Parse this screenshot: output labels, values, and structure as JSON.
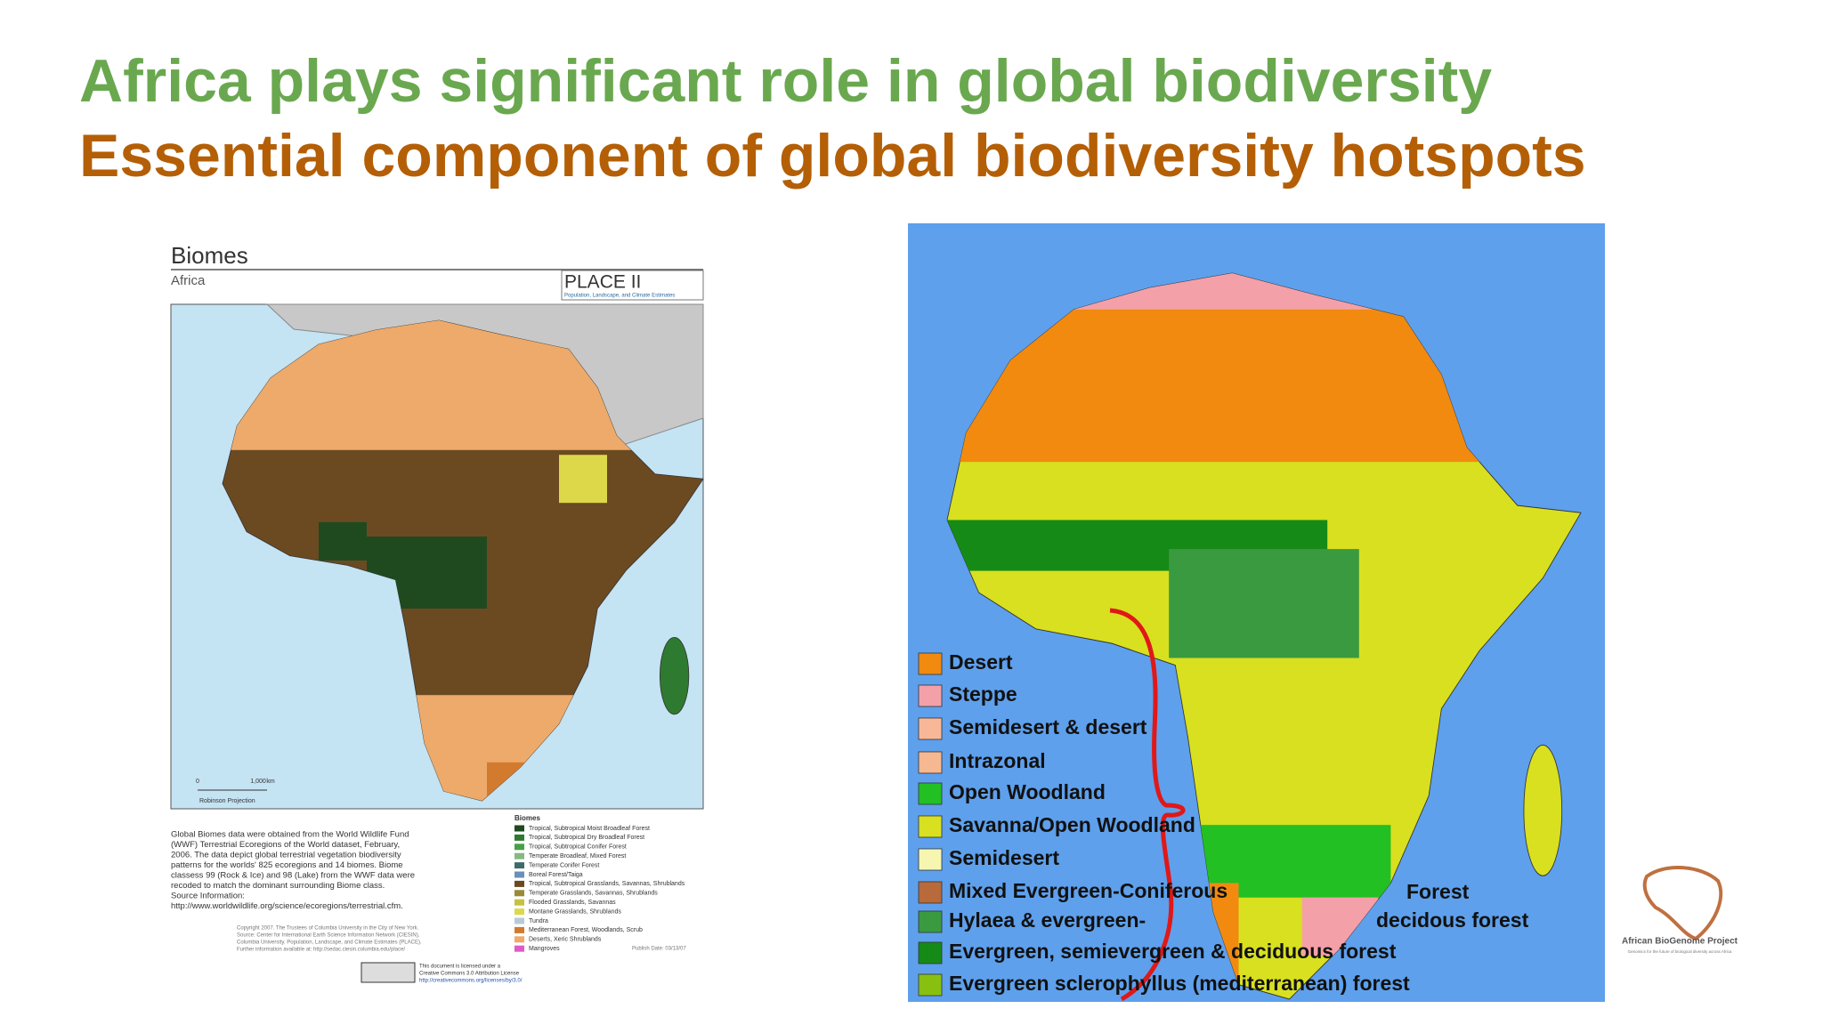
{
  "header": {
    "title": "Africa plays significant role in global biodiversity",
    "subtitle": "Essential component of global biodiversity hotspots"
  },
  "left_map": {
    "title": "Biomes",
    "region": "Africa",
    "badge": "PLACE II",
    "badge_caption": "Population, Landscape, and Climate Estimates",
    "scale_labels": [
      "0",
      "1,000",
      "km"
    ],
    "projection": "Robinson Projection",
    "description": [
      "Global Biomes data were obtained from the World Wildlife Fund",
      "(WWF) Terrestrial Ecoregions of the World dataset, February,",
      "2006. The data depict global terrestrial vegetation biodiversity",
      "patterns for the worlds' 825 ecoregions and 14 biomes. Biome",
      "classess 99 (Rock & Ice) and 98 (Lake) from the WWF data were",
      "recoded to match the dominant surrounding Biome class.",
      "Source Information:",
      "http://www.worldwildlife.org/science/ecoregions/terrestrial.cfm."
    ],
    "legend_title": "Biomes",
    "legend": [
      {
        "label": "Tropical, Subtropical Moist Broadleaf Forest",
        "color": "#1f4a1f"
      },
      {
        "label": "Tropical, Subtropical Dry Broadleaf Forest",
        "color": "#2e7a30"
      },
      {
        "label": "Tropical, Subtropical Conifer Forest",
        "color": "#47a047"
      },
      {
        "label": "Temperate Broadleaf, Mixed Forest",
        "color": "#86b886"
      },
      {
        "label": "Temperate Conifer Forest",
        "color": "#3f6b6b"
      },
      {
        "label": "Boreal Forest/Taiga",
        "color": "#6a8fb8"
      },
      {
        "label": "Tropical, Subtropical Grasslands, Savannas, Shrublands",
        "color": "#6b4a22"
      },
      {
        "label": "Temperate Grasslands, Savannas, Shrublands",
        "color": "#9a8a34"
      },
      {
        "label": "Flooded Grasslands, Savannas",
        "color": "#c8c040"
      },
      {
        "label": "Montane Grasslands, Shrublands",
        "color": "#dcd84a"
      },
      {
        "label": "Tundra",
        "color": "#b8cad8"
      },
      {
        "label": "Mediterranean Forest, Woodlands, Scrub",
        "color": "#d27a2e"
      },
      {
        "label": "Deserts, Xeric Shrublands",
        "color": "#eeaa6a"
      },
      {
        "label": "Mangroves",
        "color": "#e05ac8"
      }
    ],
    "credits": [
      "Copyright 2007. The Trustees of Columbia University in the City of New York.",
      "Source: Center for International Earth Science Information Network (CIESIN),",
      "Columbia University. Population, Landscape, and Climate Estimates (PLACE).",
      "Further information available at: http://sedac.ciesin.columbia.edu/place/"
    ],
    "publish_date": "Publish Date: 03/13/07",
    "license": [
      "This document is licensed under a",
      "Creative Commons 3.0 Attribution License",
      "http://creativecommons.org/licenses/by/3.0/"
    ]
  },
  "right_map": {
    "legend": [
      {
        "label": "Desert",
        "color": "#f28a10"
      },
      {
        "label": "Steppe",
        "color": "#f4a0a8"
      },
      {
        "label": "Semidesert & desert",
        "color": "#f8b898"
      },
      {
        "label": "Intrazonal",
        "color": "#f6b890"
      },
      {
        "label": "Open Woodland",
        "color": "#22c022"
      },
      {
        "label": "Savanna/Open Woodland",
        "color": "#d8e020"
      },
      {
        "label": "Semidesert",
        "color": "#f6f6b0"
      },
      {
        "label": "Mixed Evergreen-Coniferous",
        "color": "#b86a3a"
      },
      {
        "label": "Hylaea & evergreen-",
        "color": "#3a9a40"
      },
      {
        "label": "Evergreen, semievergreen & deciduous forest",
        "color": "#168a16"
      },
      {
        "label": "Evergreen sclerophyllus (mediterranean) forest",
        "color": "#88c010"
      }
    ],
    "continuations": [
      "Forest",
      "decidous forest"
    ]
  },
  "logo": {
    "name": "African BioGenome Project",
    "tagline": "Genomics for the future of biological diversity across Africa"
  }
}
